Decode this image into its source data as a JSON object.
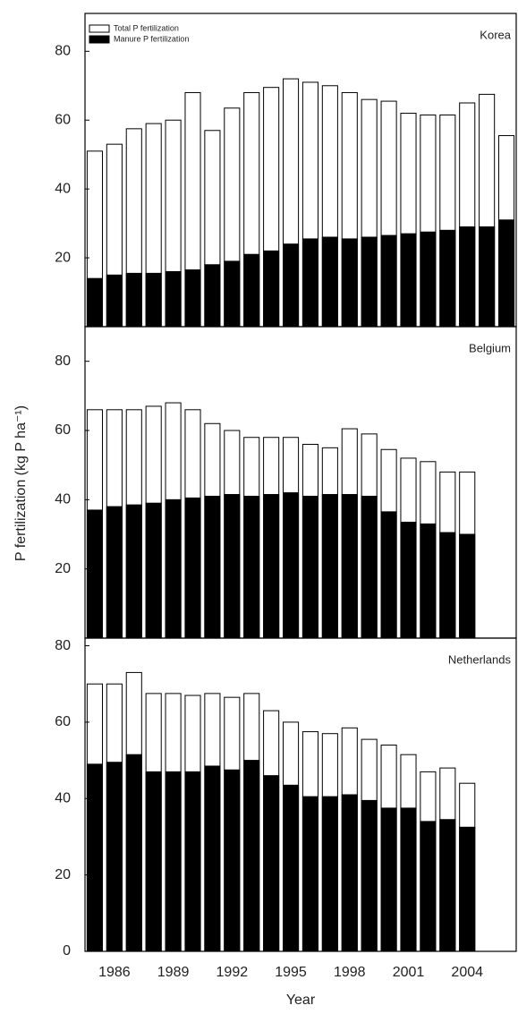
{
  "chart_data": [
    {
      "type": "bar",
      "title": "Korea",
      "series": [
        {
          "name": "Total P fertilization",
          "color": "#ffffff",
          "values": [
            51,
            53,
            57.5,
            59,
            60,
            68,
            57,
            63.5,
            68,
            69.5,
            72,
            71,
            70,
            68,
            66,
            65.5,
            62,
            61.5,
            61.5,
            65,
            67.5,
            55.5
          ]
        },
        {
          "name": "Manure P fertilization",
          "color": "#000000",
          "values": [
            14,
            15,
            15.5,
            15.5,
            16,
            16.5,
            18,
            19,
            21,
            22,
            24,
            25.5,
            26,
            25.5,
            26,
            26.5,
            27,
            27.5,
            28,
            29,
            29,
            31
          ]
        }
      ],
      "ylim": [
        0,
        91
      ],
      "yticks": [
        20,
        40,
        60,
        80
      ]
    },
    {
      "type": "bar",
      "title": "Belgium",
      "series": [
        {
          "color": "#ffffff",
          "values": [
            66,
            66,
            66,
            67,
            68,
            66,
            62,
            60,
            58,
            58,
            58,
            56,
            55,
            60.5,
            59,
            54.5,
            52,
            51,
            48,
            48,
            null,
            null
          ]
        },
        {
          "color": "#000000",
          "values": [
            37,
            38,
            38.5,
            39,
            40,
            40.5,
            41,
            41.5,
            41,
            41.5,
            42,
            41,
            41.5,
            41.5,
            41,
            36.5,
            33.5,
            33,
            30.5,
            30,
            null,
            null
          ]
        }
      ],
      "ylim": [
        0,
        90
      ],
      "yticks": [
        20,
        40,
        60,
        80
      ]
    },
    {
      "type": "bar",
      "title": "Netherlands",
      "categories": [
        null,
        "1986",
        null,
        null,
        "1989",
        null,
        null,
        "1992",
        null,
        null,
        "1995",
        null,
        null,
        "1998",
        null,
        null,
        "2001",
        null,
        null,
        "2004",
        null,
        null
      ],
      "series": [
        {
          "color": "#ffffff",
          "values": [
            70,
            70,
            73,
            67.5,
            67.5,
            67,
            67.5,
            66.5,
            67.5,
            63,
            60,
            57.5,
            57,
            58.5,
            55.5,
            54,
            51.5,
            47,
            48,
            44,
            null,
            null
          ]
        },
        {
          "color": "#000000",
          "values": [
            49,
            49.5,
            51.5,
            47,
            47,
            47,
            48.5,
            47.5,
            50,
            46,
            43.5,
            40.5,
            40.5,
            41,
            39.5,
            37.5,
            37.5,
            34,
            34.5,
            32.5,
            null,
            null
          ]
        }
      ],
      "ylim": [
        0,
        82
      ],
      "yticks": [
        0,
        20,
        40,
        60,
        80
      ],
      "x_label": "Year",
      "y_label": "P fertilization (kg P ha⁻¹)"
    }
  ]
}
